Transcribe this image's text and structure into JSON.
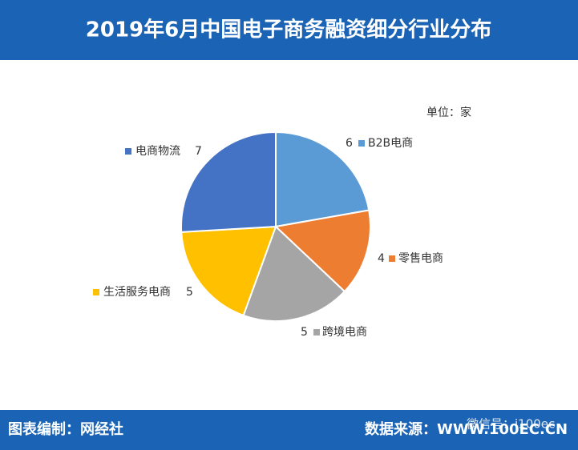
{
  "chart_data": {
    "type": "pie",
    "title": "2019年6月中国电子商务融资细分行业分布",
    "unit": "单位：家",
    "categories": [
      "B2B电商",
      "零售电商",
      "跨境电商",
      "生活服务电商",
      "电商物流"
    ],
    "values": [
      6,
      4,
      5,
      5,
      7
    ],
    "colors": [
      "#5b9bd5",
      "#ed7d31",
      "#a5a5a5",
      "#ffc000",
      "#4472c4"
    ]
  },
  "footer": {
    "credit": "图表编制：网经社",
    "source": "数据来源：WWW.100EC.CN",
    "wechat": "微信号：i100ec"
  }
}
